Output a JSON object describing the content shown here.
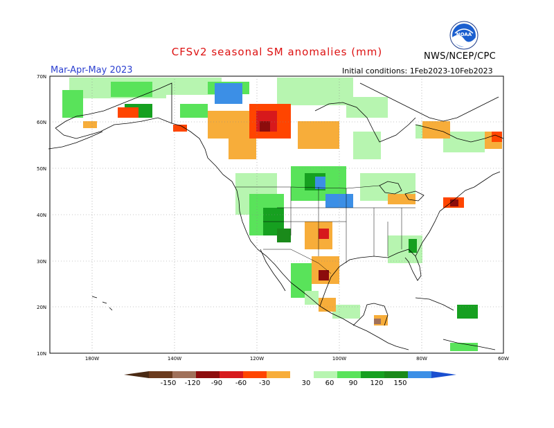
{
  "header": {
    "title": "CFSv2 seasonal SM anomalies (mm)",
    "org": "NWS/NCEP/CPC",
    "season": "Mar-Apr-May 2023",
    "init": "Initial conditions: 1Feb2023-10Feb2023",
    "logo_label": "NOAA"
  },
  "map": {
    "lat_labels": [
      "70N",
      "60N",
      "50N",
      "40N",
      "30N",
      "20N",
      "10N"
    ],
    "lon_labels": [
      "180W",
      "140W",
      "120W",
      "100W",
      "80W",
      "60W"
    ]
  },
  "colors": {
    "land_line": "#000000",
    "grid": "#8a8a8a",
    "neg150": "#6b3b1e",
    "neg120": "#a0715a",
    "neg90": "#8c0c0c",
    "neg60": "#d7191c",
    "neg30": "#ff4500",
    "neg0": "#f7ad3a",
    "pos30": "#b7f5b0",
    "pos60": "#59e35a",
    "pos90": "#16a020",
    "pos120": "#1a8a1a",
    "pos150": "#3c8fe6",
    "pos180": "#1a4fd0"
  },
  "legend": {
    "labels": [
      "-150",
      "-120",
      "-90",
      "-60",
      "-30",
      "30",
      "60",
      "90",
      "120",
      "150"
    ]
  }
}
